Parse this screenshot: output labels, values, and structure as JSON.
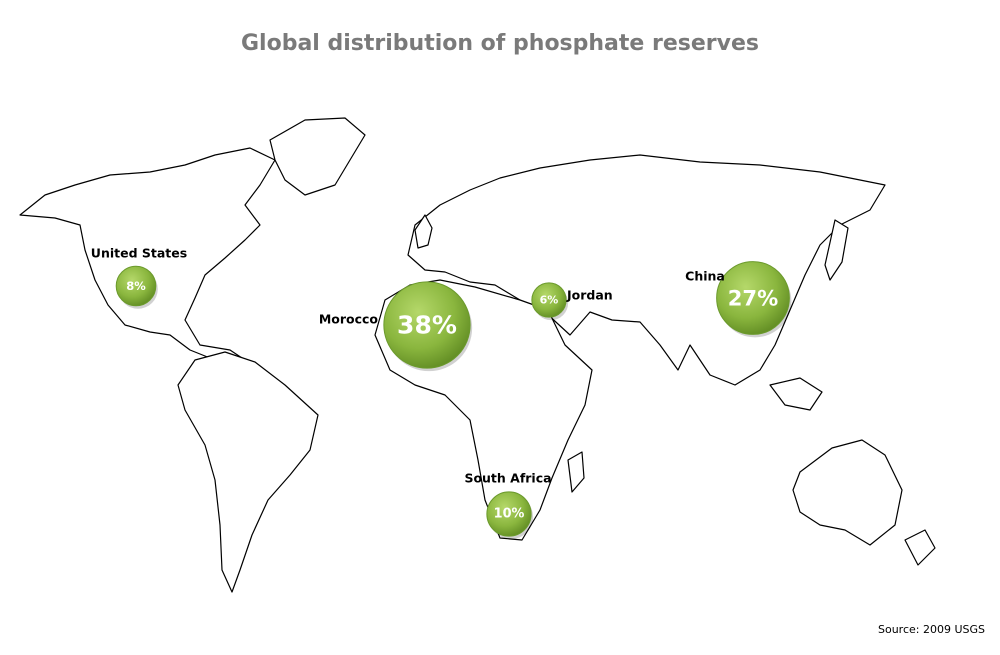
{
  "title": "Global distribution of phosphate reserves",
  "markers": [
    {
      "name": "United States",
      "value": 8,
      "value_label": "8%"
    },
    {
      "name": "Morocco",
      "value": 38,
      "value_label": "38%"
    },
    {
      "name": "Jordan",
      "value": 6,
      "value_label": "6%"
    },
    {
      "name": "China",
      "value": 27,
      "value_label": "27%"
    },
    {
      "name": "South Africa",
      "value": 10,
      "value_label": "10%"
    }
  ],
  "source": "Source: 2009 USGS"
}
